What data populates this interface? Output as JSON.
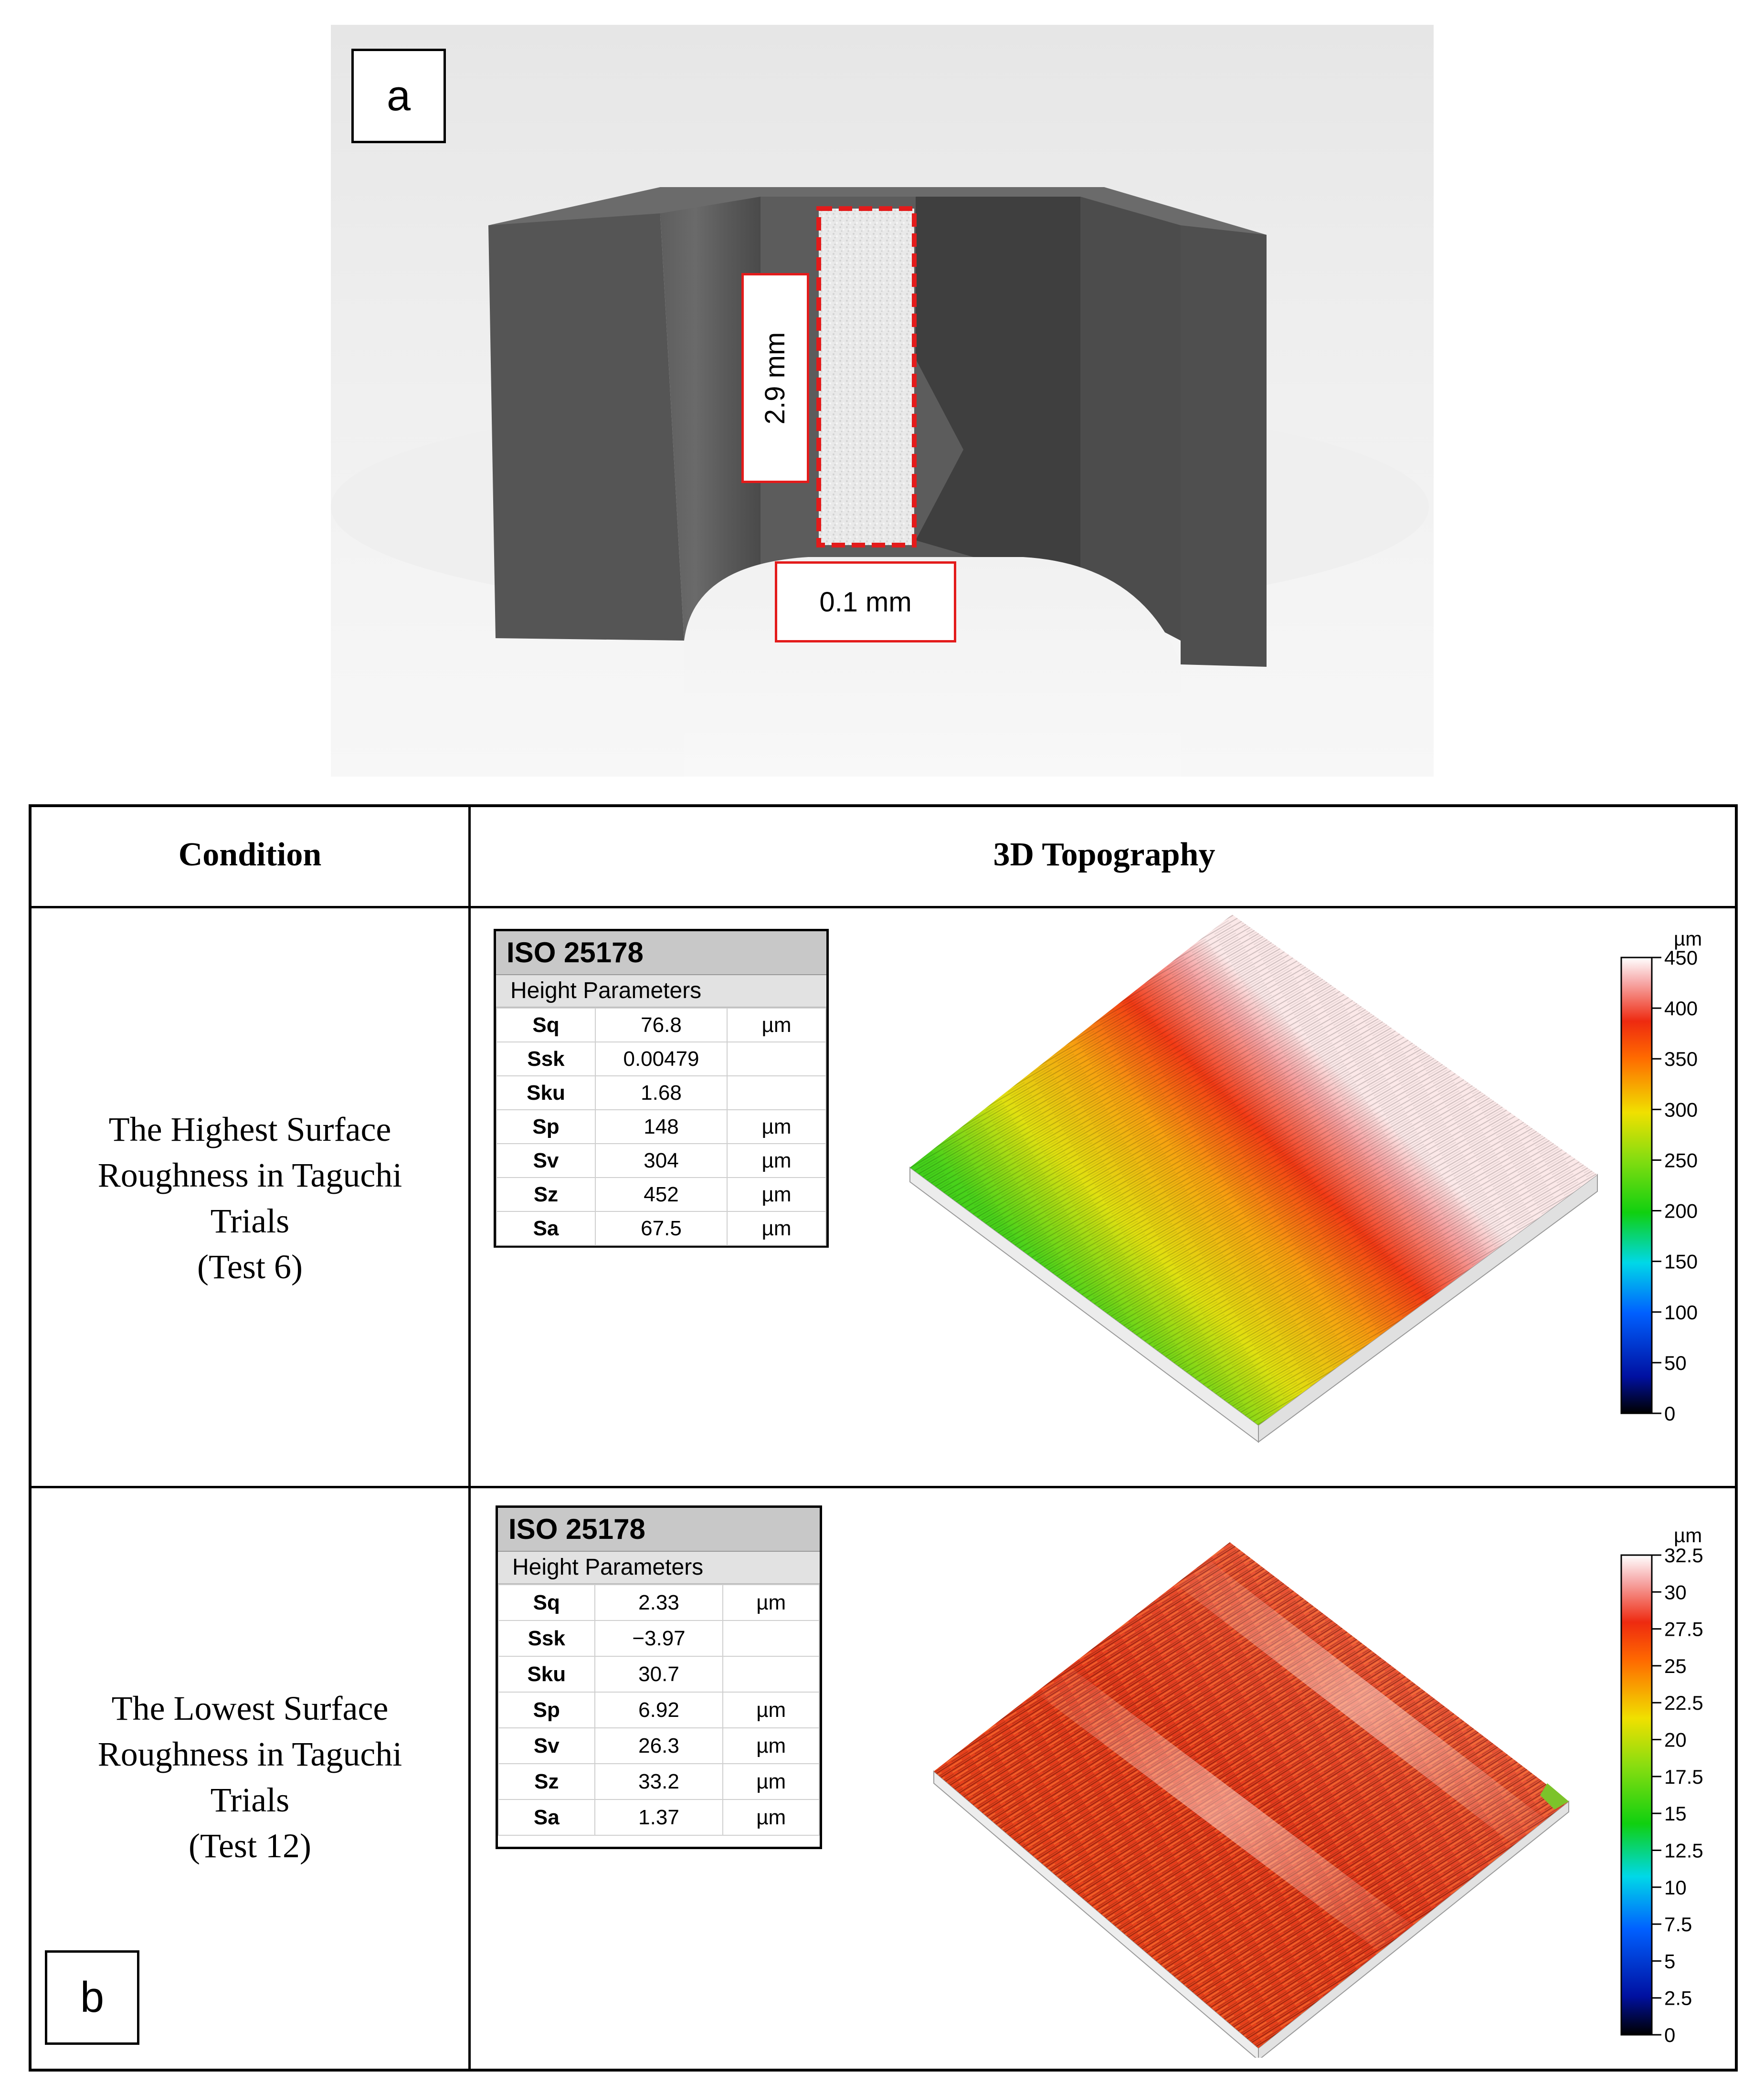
{
  "panel_a": {
    "label": "a",
    "height_dim": "2.9 mm",
    "width_dim": "0.1 mm"
  },
  "panel_b": {
    "label": "b",
    "headers": {
      "condition": "Condition",
      "topography": "3D Topography"
    },
    "rows": [
      {
        "condition_lines": [
          "The Highest Surface",
          "Roughness in Taguchi",
          "Trials",
          "(Test 6)"
        ],
        "iso_title": "ISO 25178",
        "iso_subtitle": "Height Parameters",
        "params": [
          {
            "name": "Sq",
            "value": "76.8",
            "unit": "µm"
          },
          {
            "name": "Ssk",
            "value": "0.00479",
            "unit": ""
          },
          {
            "name": "Sku",
            "value": "1.68",
            "unit": ""
          },
          {
            "name": "Sp",
            "value": "148",
            "unit": "µm"
          },
          {
            "name": "Sv",
            "value": "304",
            "unit": "µm"
          },
          {
            "name": "Sz",
            "value": "452",
            "unit": "µm"
          },
          {
            "name": "Sa",
            "value": "67.5",
            "unit": "µm"
          }
        ],
        "scale_unit": "µm",
        "scale_ticks": [
          "450",
          "400",
          "350",
          "300",
          "250",
          "200",
          "150",
          "100",
          "50",
          "0"
        ]
      },
      {
        "condition_lines": [
          "The Lowest Surface",
          "Roughness in Taguchi",
          "Trials",
          "(Test 12)"
        ],
        "iso_title": "ISO 25178",
        "iso_subtitle": "Height Parameters",
        "params": [
          {
            "name": "Sq",
            "value": "2.33",
            "unit": "µm"
          },
          {
            "name": "Ssk",
            "value": "−3.97",
            "unit": ""
          },
          {
            "name": "Sku",
            "value": "30.7",
            "unit": ""
          },
          {
            "name": "Sp",
            "value": "6.92",
            "unit": "µm"
          },
          {
            "name": "Sv",
            "value": "26.3",
            "unit": "µm"
          },
          {
            "name": "Sz",
            "value": "33.2",
            "unit": "µm"
          },
          {
            "name": "Sa",
            "value": "1.37",
            "unit": "µm"
          }
        ],
        "scale_unit": "µm",
        "scale_ticks": [
          "32.5",
          "30",
          "27.5",
          "25",
          "22.5",
          "20",
          "17.5",
          "15",
          "12.5",
          "10",
          "7.5",
          "5",
          "2.5",
          "0"
        ]
      }
    ]
  }
}
